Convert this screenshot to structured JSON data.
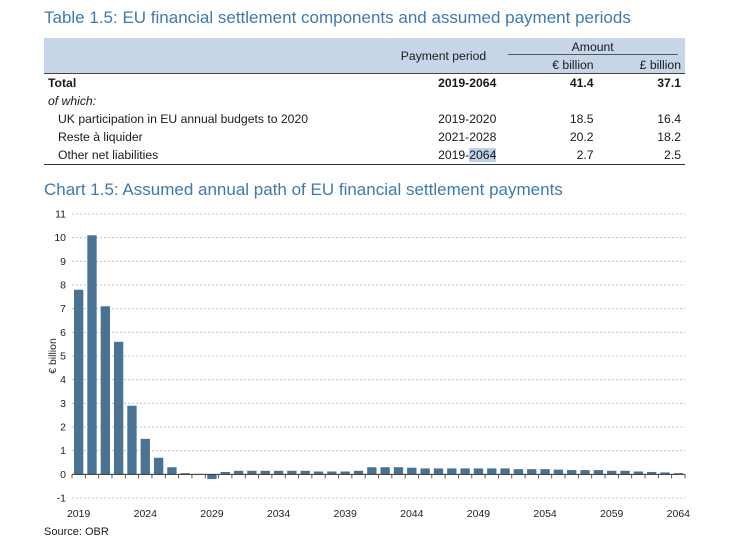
{
  "table": {
    "title": "Table 1.5: EU financial settlement components and assumed payment periods",
    "headers": {
      "payment_period": "Payment period",
      "amount": "Amount",
      "eur": "€ billion",
      "gbp": "£ billion"
    },
    "total": {
      "label": "Total",
      "period": "2019-2064",
      "eur": "41.4",
      "gbp": "37.1"
    },
    "of_which": "of which:",
    "rows": [
      {
        "label": "UK participation in EU annual budgets to 2020",
        "period": "2019-2020",
        "eur": "18.5",
        "gbp": "16.4"
      },
      {
        "label": "Reste à liquider",
        "period": "2021-2028",
        "eur": "20.2",
        "gbp": "18.2"
      },
      {
        "label": "Other net liabilities",
        "period_a": "2019-",
        "period_b": "2064",
        "eur": "2.7",
        "gbp": "2.5"
      }
    ]
  },
  "chart": {
    "title": "Chart 1.5: Assumed annual path of EU financial settlement payments",
    "source": "Source: OBR"
  },
  "chart_data": {
    "type": "bar",
    "ylabel": "€ billion",
    "xlabel": "",
    "ylim": [
      -1,
      11
    ],
    "yticks": [
      -1,
      0,
      1,
      2,
      3,
      4,
      5,
      6,
      7,
      8,
      9,
      10,
      11
    ],
    "grid": true,
    "bar_color": "#4a7293",
    "xtick_labels": [
      "2019",
      "2024",
      "2029",
      "2034",
      "2039",
      "2044",
      "2049",
      "2054",
      "2059",
      "2064"
    ],
    "categories": [
      "2019",
      "2020",
      "2021",
      "2022",
      "2023",
      "2024",
      "2025",
      "2026",
      "2027",
      "2028",
      "2029",
      "2030",
      "2031",
      "2032",
      "2033",
      "2034",
      "2035",
      "2036",
      "2037",
      "2038",
      "2039",
      "2040",
      "2041",
      "2042",
      "2043",
      "2044",
      "2045",
      "2046",
      "2047",
      "2048",
      "2049",
      "2050",
      "2051",
      "2052",
      "2053",
      "2054",
      "2055",
      "2056",
      "2057",
      "2058",
      "2059",
      "2060",
      "2061",
      "2062",
      "2063",
      "2064"
    ],
    "values": [
      7.8,
      10.1,
      7.1,
      5.6,
      2.9,
      1.5,
      0.7,
      0.3,
      0.05,
      0.02,
      -0.2,
      0.1,
      0.15,
      0.15,
      0.15,
      0.15,
      0.15,
      0.15,
      0.12,
      0.12,
      0.12,
      0.15,
      0.3,
      0.3,
      0.3,
      0.28,
      0.25,
      0.25,
      0.25,
      0.25,
      0.25,
      0.25,
      0.25,
      0.22,
      0.22,
      0.22,
      0.2,
      0.18,
      0.18,
      0.18,
      0.15,
      0.15,
      0.12,
      0.1,
      0.08,
      0.05
    ]
  }
}
